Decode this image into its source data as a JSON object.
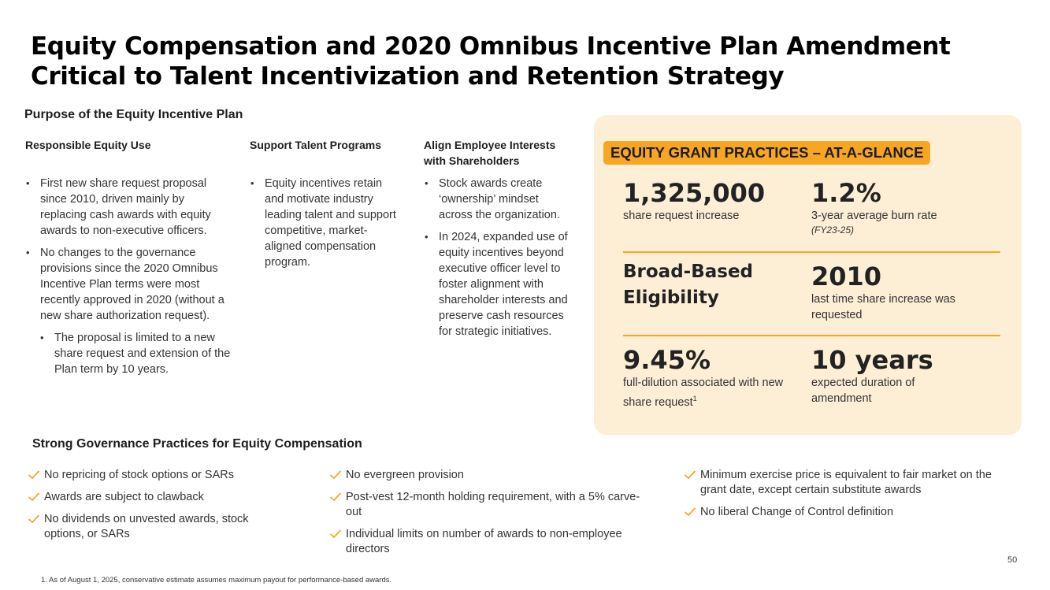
{
  "title": {
    "line1": "Equity Compensation and 2020 Omnibus Incentive Plan Amendment",
    "line2": "Critical to Talent Incentivization and Retention Strategy"
  },
  "purpose": {
    "heading": "Purpose of the Equity Incentive Plan",
    "columns": [
      {
        "heading": "Responsible Equity Use",
        "bullets": [
          "First new share request proposal since 2010, driven mainly by replacing cash awards with equity awards to non-executive officers.",
          "No changes to the governance provisions since the 2020 Omnibus Incentive Plan terms were most recently approved in 2020 (without a new share authorization request)."
        ],
        "sub_bullets": [
          "The proposal is limited to a new share request and extension of the Plan term by 10 years."
        ]
      },
      {
        "heading": "Support Talent Programs",
        "bullets": [
          "Equity incentives retain and motivate industry leading talent and support competitive, market-aligned compensation program."
        ]
      },
      {
        "heading": "Align Employee Interests with Shareholders",
        "bullets": [
          "Stock awards create ‘ownership’ mindset across the organization.",
          "In 2024, expanded use of equity incentives beyond executive officer level to foster alignment with shareholder interests and preserve cash resources for strategic initiatives."
        ]
      }
    ]
  },
  "glance": {
    "badge": "EQUITY GRANT PRACTICES – AT-A-GLANCE",
    "stats": {
      "shares": {
        "value": "1,325,000",
        "label": "share request increase"
      },
      "burn": {
        "value": "1.2%",
        "label": "3-year average burn rate",
        "note": "(FY23-25)"
      },
      "eligibility": {
        "value": "Broad-Based Eligibility"
      },
      "year": {
        "value": "2010",
        "label": "last time share increase was requested"
      },
      "dilution": {
        "value": "9.45%",
        "label": "full-dilution associated with new share request",
        "sup": "1"
      },
      "duration": {
        "value": "10 years",
        "label": "expected duration of amendment"
      }
    }
  },
  "governance": {
    "heading": "Strong Governance Practices for Equity Compensation",
    "col1": [
      "No repricing of stock options or SARs",
      "Awards are subject to clawback",
      "No dividends on unvested awards, stock options, or SARs"
    ],
    "col2": [
      "No evergreen provision",
      "Post-vest 12-month holding requirement, with a 5% carve-out",
      "Individual limits on number of awards to non-employee directors"
    ],
    "col3": [
      "Minimum exercise price is equivalent to fair market on the grant date, except certain substitute awards",
      "No liberal Change of Control definition"
    ]
  },
  "page_number": "50",
  "footnote": "1. As of August 1, 2025, conservative estimate assumes maximum payout for performance-based awards.",
  "colors": {
    "accent": "#f6a623",
    "panel": "#fdefd6",
    "check": "#f6a623"
  },
  "icons": {
    "check": "checkmark-icon"
  }
}
